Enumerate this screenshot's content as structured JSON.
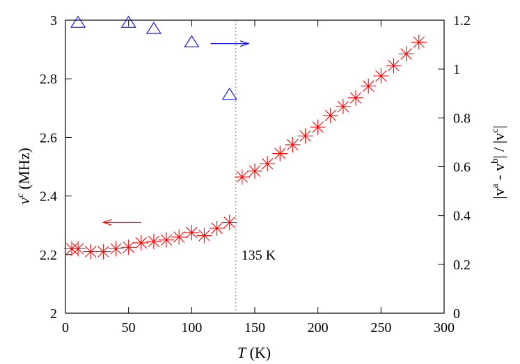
{
  "chart_data": {
    "type": "scatter",
    "xlabel_main": "T",
    "xlabel_unit": " (K)",
    "ylabel_left_base": "v",
    "ylabel_left_sup": "c",
    "ylabel_left_unit": " (MHz)",
    "ylabel_right_p1": "|v",
    "ylabel_right_sup1": "a",
    "ylabel_right_p2": " - v",
    "ylabel_right_sup2": "b",
    "ylabel_right_p3": "| / |v",
    "ylabel_right_sup3": "c",
    "ylabel_right_p4": "|",
    "xlim": [
      0,
      300
    ],
    "ylim_left": [
      2,
      3
    ],
    "ylim_right": [
      0,
      1.2
    ],
    "x_ticks": [
      "0",
      "50",
      "100",
      "150",
      "200",
      "250",
      "300"
    ],
    "y_left_ticks": [
      "2",
      "2.2",
      "2.4",
      "2.6",
      "2.8",
      "3"
    ],
    "y_right_ticks": [
      "0",
      "0.2",
      "0.4",
      "0.6",
      "0.8",
      "1",
      "1.2"
    ],
    "transition": {
      "x": 135,
      "label": "135 K"
    },
    "series": [
      {
        "axis": "left",
        "marker": "asterisk",
        "color": "#ff0000",
        "x": [
          5,
          10,
          20,
          30,
          40,
          50,
          60,
          70,
          80,
          90,
          100,
          110,
          120,
          130,
          140,
          150,
          160,
          170,
          180,
          190,
          200,
          210,
          220,
          230,
          240,
          250,
          260,
          270,
          280
        ],
        "y": [
          2.22,
          2.22,
          2.21,
          2.21,
          2.22,
          2.225,
          2.24,
          2.245,
          2.25,
          2.26,
          2.275,
          2.265,
          2.29,
          2.31,
          2.465,
          2.485,
          2.51,
          2.545,
          2.575,
          2.605,
          2.635,
          2.675,
          2.705,
          2.735,
          2.775,
          2.81,
          2.845,
          2.885,
          2.925
        ]
      },
      {
        "axis": "right",
        "marker": "triangle",
        "color": "#0000ff",
        "x": [
          10,
          50,
          70,
          100,
          130
        ],
        "y": [
          1.19,
          1.19,
          1.165,
          1.11,
          0.895
        ]
      }
    ],
    "arrows": [
      {
        "x1": 60,
        "x2": 30,
        "y": 2.31,
        "axis": "left",
        "color": "#ff0000"
      },
      {
        "x1": 115,
        "x2": 145,
        "y": 2.92,
        "axis": "left",
        "color": "#0000ff"
      }
    ]
  }
}
